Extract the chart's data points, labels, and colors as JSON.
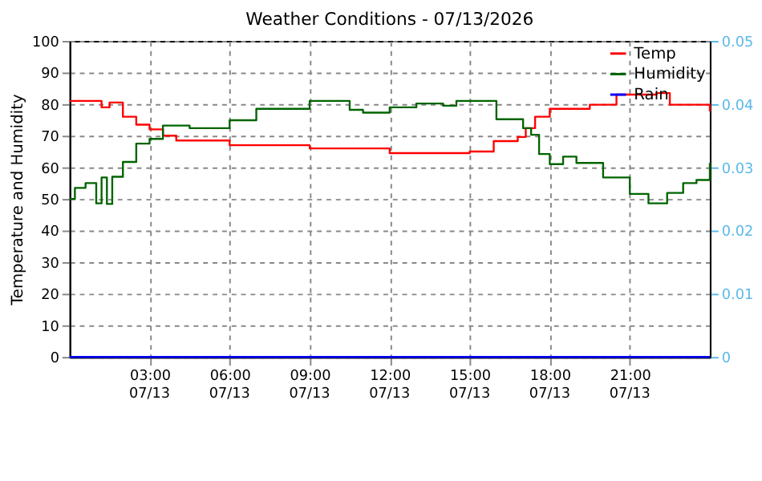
{
  "chart_data": {
    "type": "step",
    "title": "Weather Conditions - 07/13/2026",
    "ylabel": "Temperature and Humidity",
    "xlim": [
      0,
      24
    ],
    "xticks": [
      {
        "value": 3,
        "label": "03:00"
      },
      {
        "value": 6,
        "label": "06:00"
      },
      {
        "value": 9,
        "label": "09:00"
      },
      {
        "value": 12,
        "label": "12:00"
      },
      {
        "value": 15,
        "label": "15:00"
      },
      {
        "value": 18,
        "label": "18:00"
      },
      {
        "value": 21,
        "label": "21:00"
      }
    ],
    "annotations": [
      "07/13",
      "07/13",
      "07/13",
      "07/13",
      "07/13",
      "07/13",
      "07/13"
    ],
    "ylim": [
      0,
      100
    ],
    "yticks": [
      0,
      10,
      20,
      30,
      40,
      50,
      60,
      70,
      80,
      90,
      100
    ],
    "y2lim": [
      0,
      0.05
    ],
    "y2ticks": [
      {
        "value": 0,
        "label": "0"
      },
      0.01,
      0.02,
      0.03,
      0.04,
      0.05
    ],
    "grid": true,
    "legend": "top right",
    "series": [
      {
        "name": "Temp",
        "color": "#ff0000",
        "x": [
          0,
          1.0,
          1.2,
          1.5,
          2.0,
          2.5,
          3.0,
          3.5,
          4.0,
          6.0,
          9.0,
          12.0,
          15.0,
          15.9,
          16.8,
          17.1,
          17.45,
          18.0,
          19.5,
          20.5,
          22.0,
          22.5,
          23.0,
          24.0
        ],
        "values": [
          81,
          81,
          79,
          80.5,
          76,
          73.5,
          72,
          70,
          68.5,
          67,
          66,
          64.5,
          65,
          68.3,
          69.6,
          72.4,
          76,
          78.5,
          79.8,
          83,
          83.5,
          79.8,
          79.8,
          77.7
        ]
      },
      {
        "name": "Humidity",
        "color": "#006400",
        "x": [
          0,
          0.2,
          0.6,
          1.0,
          1.2,
          1.4,
          1.6,
          2.0,
          2.5,
          3.0,
          3.5,
          4.5,
          6.0,
          7.0,
          9.0,
          10.5,
          11.0,
          12.0,
          13.0,
          14.0,
          14.5,
          15.0,
          16.0,
          17.0,
          17.3,
          17.6,
          18.0,
          18.5,
          19.0,
          20.0,
          21.0,
          21.7,
          22.4,
          23.0,
          23.5,
          24.0
        ],
        "values": [
          50,
          53.5,
          55,
          48.6,
          56.8,
          48.4,
          57,
          61.7,
          67.5,
          69,
          73.2,
          72.4,
          74.9,
          78.5,
          81,
          78.2,
          77.3,
          79,
          80.2,
          79.5,
          81,
          81,
          75.2,
          72.4,
          70.3,
          64.2,
          61,
          63.4,
          61.4,
          56.8,
          51.6,
          48.6,
          51.9,
          55,
          56,
          61.4
        ]
      },
      {
        "name": "Rain",
        "color": "#0000ff",
        "axis": "y2",
        "x": [
          0,
          24
        ],
        "values": [
          0,
          0
        ]
      }
    ]
  }
}
